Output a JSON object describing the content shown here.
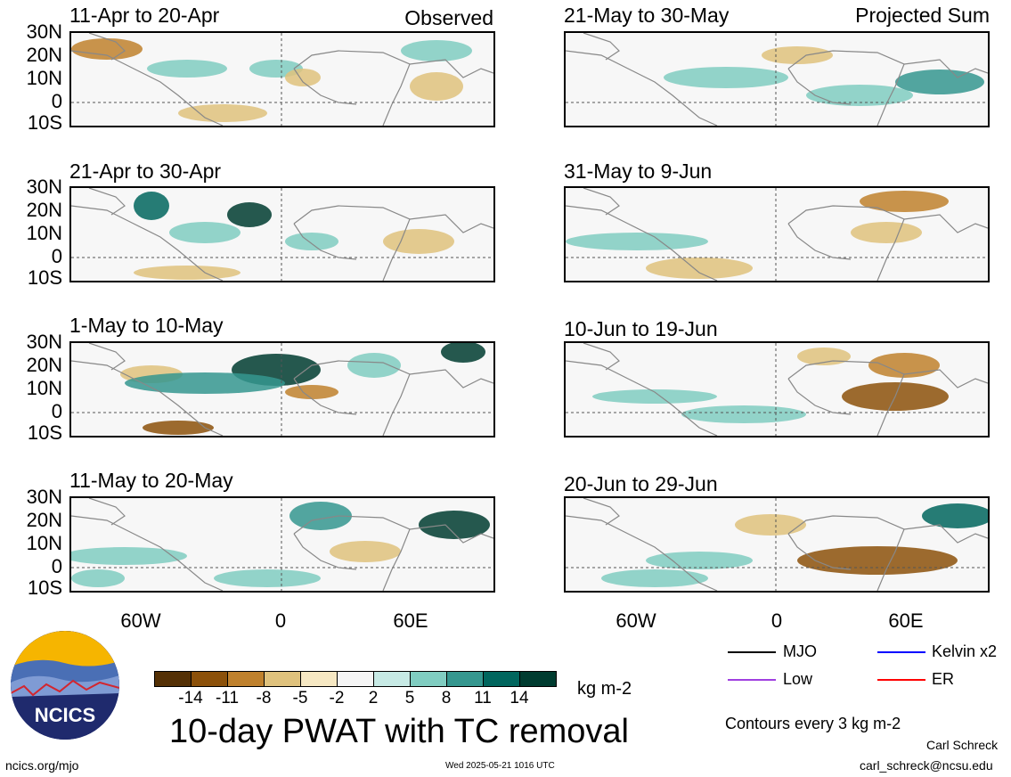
{
  "panels": [
    {
      "title": "11-Apr to 20-Apr",
      "tag": "Observed"
    },
    {
      "title": "21-Apr to 30-Apr",
      "tag": ""
    },
    {
      "title": "1-May to 10-May",
      "tag": ""
    },
    {
      "title": "11-May to 20-May",
      "tag": ""
    },
    {
      "title": "21-May to 30-May",
      "tag": "Projected Sum"
    },
    {
      "title": "31-May to 9-Jun",
      "tag": ""
    },
    {
      "title": "10-Jun to 19-Jun",
      "tag": ""
    },
    {
      "title": "20-Jun to 29-Jun",
      "tag": ""
    }
  ],
  "lat_labels": [
    "30N",
    "20N",
    "10N",
    "0",
    "10S"
  ],
  "lon_labels": [
    "60W",
    "0",
    "60E"
  ],
  "colorbar": {
    "colors": [
      "#543005",
      "#8c510a",
      "#bf812d",
      "#dfc27d",
      "#f6e8c3",
      "#f5f5f5",
      "#c7eae5",
      "#80cdc1",
      "#35978f",
      "#01665e",
      "#003c30"
    ],
    "labels": [
      "-14",
      "-11",
      "-8",
      "-5",
      "-2",
      "2",
      "5",
      "8",
      "11",
      "14"
    ],
    "units": "kg m-2"
  },
  "main_title": "10-day PWAT with TC removal",
  "legend": {
    "items": [
      {
        "label": "MJO",
        "color": "#000000"
      },
      {
        "label": "Kelvin x2",
        "color": "#0000ff"
      },
      {
        "label": "Low",
        "color": "#a040e0"
      },
      {
        "label": "ER",
        "color": "#ff0000"
      }
    ],
    "contours_note": "Contours every 3 kg m-2"
  },
  "footer": {
    "url": "ncics.org/mjo",
    "timestamp": "Wed 2025-05-21 1016 UTC",
    "author": "Carl Schreck",
    "email": "carl_schreck@ncsu.edu",
    "logo_text": "NCICS"
  }
}
